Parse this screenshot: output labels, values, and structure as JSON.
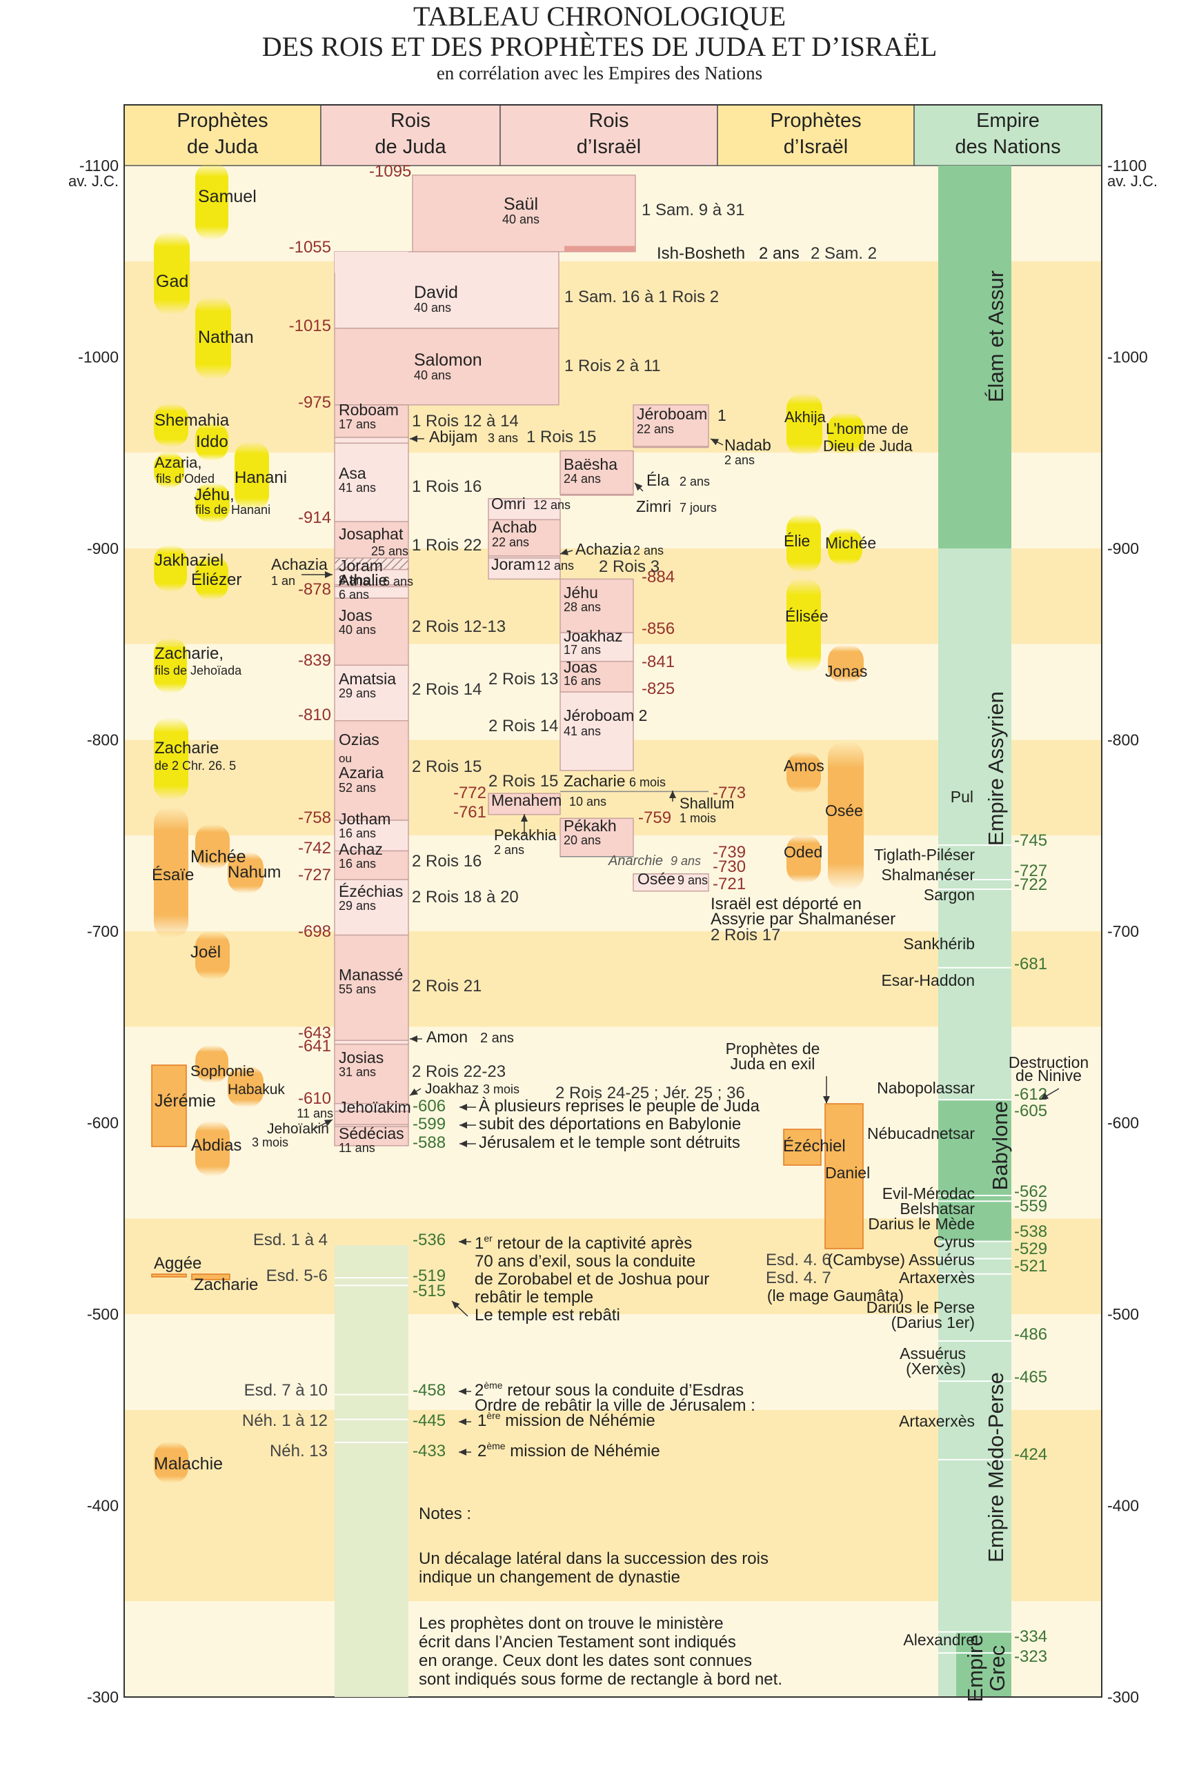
{
  "title": {
    "line1": "TABLEAU CHRONOLOGIQUE",
    "line2": "DES ROIS ET DES PROPHÈTES DE JUDA ET D’ISRAËL",
    "subtitle": "en corrélation avec les Empires des Nations"
  },
  "colors": {
    "band_dark": "#fdeab3",
    "band_light": "#fef7e0",
    "hdr_prophet": "#fee8a0",
    "hdr_king": "#f8d6cf",
    "hdr_empire": "#c5e5c9",
    "king_dark": "#f7d3cb",
    "king_light": "#fbe5e1",
    "king_edge": "#c9a3a0",
    "return": "#e3eccb",
    "prophet_yellow": "#f2e712",
    "prophet_orange": "#f7b75a",
    "prophet_orange_edge": "#e47a22",
    "empire_dark": "#8ccb98",
    "empire_light": "#c7e6cb",
    "date_judah": "#94322e",
    "date_empire": "#3c7434",
    "ink": "#222222"
  },
  "columns": {
    "header": [
      {
        "line1": "Prophètes",
        "line2": "de Juda"
      },
      {
        "line1": "Rois",
        "line2": "de Juda"
      },
      {
        "line1": "Rois",
        "line2": "d’Israël"
      },
      {
        "line1": "Prophètes",
        "line2": "d’Israël"
      },
      {
        "line1": "Empire",
        "line2": "des Nations"
      }
    ]
  },
  "chart_data": {
    "type": "timeline",
    "y_range": [
      -1100,
      -300
    ],
    "y_ticks": [
      {
        "year": -1100,
        "label": "-1100",
        "sub": "av. J.C."
      },
      {
        "year": -1000,
        "label": "-1000"
      },
      {
        "year": -900,
        "label": "-900"
      },
      {
        "year": -800,
        "label": "-800"
      },
      {
        "year": -700,
        "label": "-700"
      },
      {
        "year": -600,
        "label": "-600"
      },
      {
        "year": -500,
        "label": "-500"
      },
      {
        "year": -400,
        "label": "-400"
      },
      {
        "year": -300,
        "label": "-300"
      }
    ],
    "kings_judah": [
      {
        "name": "David",
        "dur": "40 ans",
        "start": -1055,
        "end": -1015
      },
      {
        "name": "Salomon",
        "dur": "40 ans",
        "start": -1015,
        "end": -975
      },
      {
        "name": "Roboam",
        "dur": "17 ans",
        "start": -975,
        "end": -958
      },
      {
        "name": "Abijam",
        "dur": "3 ans",
        "start": -958,
        "end": -955
      },
      {
        "name": "Asa",
        "dur": "41 ans",
        "start": -955,
        "end": -914
      },
      {
        "name": "Josaphat",
        "dur": "25 ans",
        "start": -914,
        "end": -889
      },
      {
        "name": "Joram",
        "dur": "8 ans",
        "start": -889,
        "end": -881
      },
      {
        "name": "Achazia",
        "dur": "1 an",
        "start": -881,
        "end": -880
      },
      {
        "name": "Athalie",
        "dur": "6 ans",
        "start": -880,
        "end": -874
      },
      {
        "name": "Joas",
        "dur": "40 ans",
        "start": -878,
        "end": -839
      },
      {
        "name": "Amatsia",
        "dur": "29 ans",
        "start": -839,
        "end": -810
      },
      {
        "name": "Ozias ou Azaria",
        "dur": "52 ans",
        "start": -810,
        "end": -758
      },
      {
        "name": "Jotham",
        "dur": "16 ans",
        "start": -758,
        "end": -742
      },
      {
        "name": "Achaz",
        "dur": "16 ans",
        "start": -742,
        "end": -727
      },
      {
        "name": "Ézéchias",
        "dur": "29 ans",
        "start": -727,
        "end": -698
      },
      {
        "name": "Manassé",
        "dur": "55 ans",
        "start": -698,
        "end": -643
      },
      {
        "name": "Amon",
        "dur": "2 ans",
        "start": -643,
        "end": -641
      },
      {
        "name": "Josias",
        "dur": "31 ans",
        "start": -641,
        "end": -610
      },
      {
        "name": "Joakhaz",
        "dur": "3 mois",
        "start": -610,
        "end": -609
      },
      {
        "name": "Jehoïakim",
        "dur": "11 ans",
        "start": -609,
        "end": -599
      },
      {
        "name": "Jehoïakin",
        "dur": "3 mois",
        "start": -599,
        "end": -598
      },
      {
        "name": "Sédécias",
        "dur": "11 ans",
        "start": -598,
        "end": -588
      }
    ],
    "kings_israel": [
      {
        "name": "Saül",
        "dur": "40 ans",
        "start": -1095,
        "end": -1055
      },
      {
        "name": "Ish-Bosheth",
        "dur": "2 ans",
        "start": -1057,
        "end": -1055
      },
      {
        "name": "Jéroboam 1",
        "dur": "22 ans",
        "start": -975,
        "end": -953
      },
      {
        "name": "Nadab",
        "dur": "2 ans",
        "start": -953,
        "end": -951
      },
      {
        "name": "Baësha",
        "dur": "24 ans",
        "start": -951,
        "end": -928
      },
      {
        "name": "Éla",
        "dur": "2 ans",
        "start": -928,
        "end": -926
      },
      {
        "name": "Zimri",
        "dur": "7 jours",
        "start": -926,
        "end": -925
      },
      {
        "name": "Omri",
        "dur": "12 ans",
        "start": -926,
        "end": -915
      },
      {
        "name": "Achab",
        "dur": "22 ans",
        "start": -915,
        "end": -896
      },
      {
        "name": "Achazia",
        "dur": "2 ans",
        "start": -896,
        "end": -895
      },
      {
        "name": "Joram",
        "dur": "12 ans",
        "start": -895,
        "end": -884
      },
      {
        "name": "Jéhu",
        "dur": "28 ans",
        "start": -884,
        "end": -856
      },
      {
        "name": "Joakhaz",
        "dur": "17 ans",
        "start": -856,
        "end": -841
      },
      {
        "name": "Joas",
        "dur": "16 ans",
        "start": -841,
        "end": -825
      },
      {
        "name": "Jéroboam 2",
        "dur": "41 ans",
        "start": -825,
        "end": -784
      },
      {
        "name": "Zacharie",
        "dur": "6 mois",
        "start": -773,
        "end": -772
      },
      {
        "name": "Shallum",
        "dur": "1 mois",
        "start": -772,
        "end": -772
      },
      {
        "name": "Menahem",
        "dur": "10 ans",
        "start": -772,
        "end": -761
      },
      {
        "name": "Pekakhia",
        "dur": "2 ans",
        "start": -761,
        "end": -759
      },
      {
        "name": "Pékakh",
        "dur": "20 ans",
        "start": -759,
        "end": -739
      },
      {
        "name": "Anarchie",
        "dur": "9 ans",
        "start": -739,
        "end": -730
      },
      {
        "name": "Osée",
        "dur": "9 ans",
        "start": -730,
        "end": -721
      }
    ],
    "empires": [
      {
        "name": "Élam et Assur",
        "start": -1100,
        "end": -900
      },
      {
        "name": "Empire Assyrien",
        "start": -900,
        "end": -612
      },
      {
        "name": "Babylone",
        "start": -612,
        "end": -538
      },
      {
        "name": "Empire Médo-Perse",
        "start": -538,
        "end": -334
      },
      {
        "name": "Empire Grec",
        "start": -334,
        "end": -300
      }
    ]
  },
  "texts": {
    "date_labels": [
      "-1095",
      "-1055",
      "-1015",
      "-975",
      "-914",
      "-878",
      "-839",
      "-810",
      "-758",
      "-742",
      "-727",
      "-698",
      "-643",
      "-641",
      "-610",
      "-884",
      "-856",
      "-841",
      "-825",
      "-772",
      "-761",
      "-773",
      "-759",
      "-739",
      "-730",
      "-721",
      "-606",
      "-599",
      "-588",
      "-536",
      "-519",
      "-515",
      "-458",
      "-445",
      "-433",
      "-745",
      "-727",
      "-722",
      "-681",
      "-612",
      "-605",
      "-562",
      "-559",
      "-538",
      "-529",
      "-521",
      "-486",
      "-465",
      "-424",
      "-334",
      "-323"
    ],
    "references": [
      "1 Sam. 9 à 31",
      "2 Sam. 2",
      "1 Sam. 16 à 1 Rois 2",
      "1 Rois 2 à 11",
      "1 Rois 12 à 14",
      "1 Rois 15",
      "1 Rois 16",
      "1 Rois 22",
      "2 Rois 3",
      "2 Rois 12-13",
      "2 Rois 13",
      "2 Rois 14",
      "2 Rois 14",
      "2 Rois 15",
      "2 Rois 15",
      "2 Rois 16",
      "2 Rois 18 à 20",
      "2 Rois 21",
      "2 Rois 22-23",
      "2 Rois 24-25 ; Jér. 25 ; 36",
      "2 Rois 17",
      "Esd. 1 à 4",
      "Esd. 5-6",
      "Esd. 7 à 10",
      "Néh. 1 à 12",
      "Néh. 13",
      "Esd. 4. 6",
      "Esd. 4. 7"
    ],
    "events": [
      "À plusieurs reprises le peuple de Juda",
      "subit des déportations en Babylonie",
      "Jérusalem et le temple sont détruits",
      "70 ans d’exil, sous la conduite",
      "de Zorobabel et de Joshua pour",
      "rebâtir le temple",
      "Le temple est rebâti",
      "Ordre de rebâtir la ville de Jérusalem :",
      "Israël est déporté en",
      "Assyrie par Shalmanéser",
      "Prophètes de",
      "Juda en exil",
      "Destruction",
      "de Ninive"
    ],
    "events_super": [
      {
        "pre": "1",
        "sup": "er",
        "post": " retour de la captivité après"
      },
      {
        "pre": "2",
        "sup": "ème",
        "post": " retour sous la conduite d’Esdras"
      },
      {
        "pre": "1",
        "sup": "ère",
        "post": " mission de Néhémie"
      },
      {
        "pre": "2",
        "sup": "ème",
        "post": " mission de Néhémie"
      }
    ],
    "rulers": [
      "Pul",
      "Tiglath-Piléser",
      "Shalmanéser",
      "Sargon",
      "Sankhérib",
      "Esar-Haddon",
      "Nabopolassar",
      "Nébucadnetsar",
      "Evil-Mérodac",
      "Belshatsar",
      "Darius le Mède",
      "Cyrus",
      "(Cambyse) Assuérus",
      "Artaxerxès",
      "(le mage Gaumâta)",
      "Darius le Perse",
      "(Darius 1er)",
      "Assuérus",
      "(Xerxès)",
      "Artaxerxès",
      "Alexandre"
    ],
    "prophets": [
      "Samuel",
      "Gad",
      "Nathan",
      "Shemahia",
      "Iddo",
      "Azaria,",
      "fils d’Oded",
      "Hanani",
      "Jéhu,",
      "fils de Hanani",
      "Jakhaziel",
      "Éliézer",
      "Zacharie,",
      "fils de Jehoïada",
      "Zacharie",
      "de 2 Chr. 26. 5",
      "Ésaïe",
      "Michée",
      "Nahum",
      "Joël",
      "Sophonie",
      "Habakuk",
      "Jérémie",
      "Abdias",
      "Aggée",
      "Zacharie",
      "Malachie",
      "Akhija",
      "L’homme de",
      "Dieu de Juda",
      "Élie",
      "Michée",
      "Élisée",
      "Jonas",
      "Amos",
      "Osée",
      "Oded",
      "Ézéchiel",
      "Daniel"
    ],
    "notes": [
      "Notes :",
      "Un décalage latéral dans la succession des rois",
      "indique un changement de dynastie",
      "Les prophètes dont on trouve le ministère",
      "écrit dans l’Ancien Testament sont indiqués",
      "en orange. Ceux dont les dates sont connues",
      "sont indiqués sous forme de rectangle à bord net."
    ]
  }
}
